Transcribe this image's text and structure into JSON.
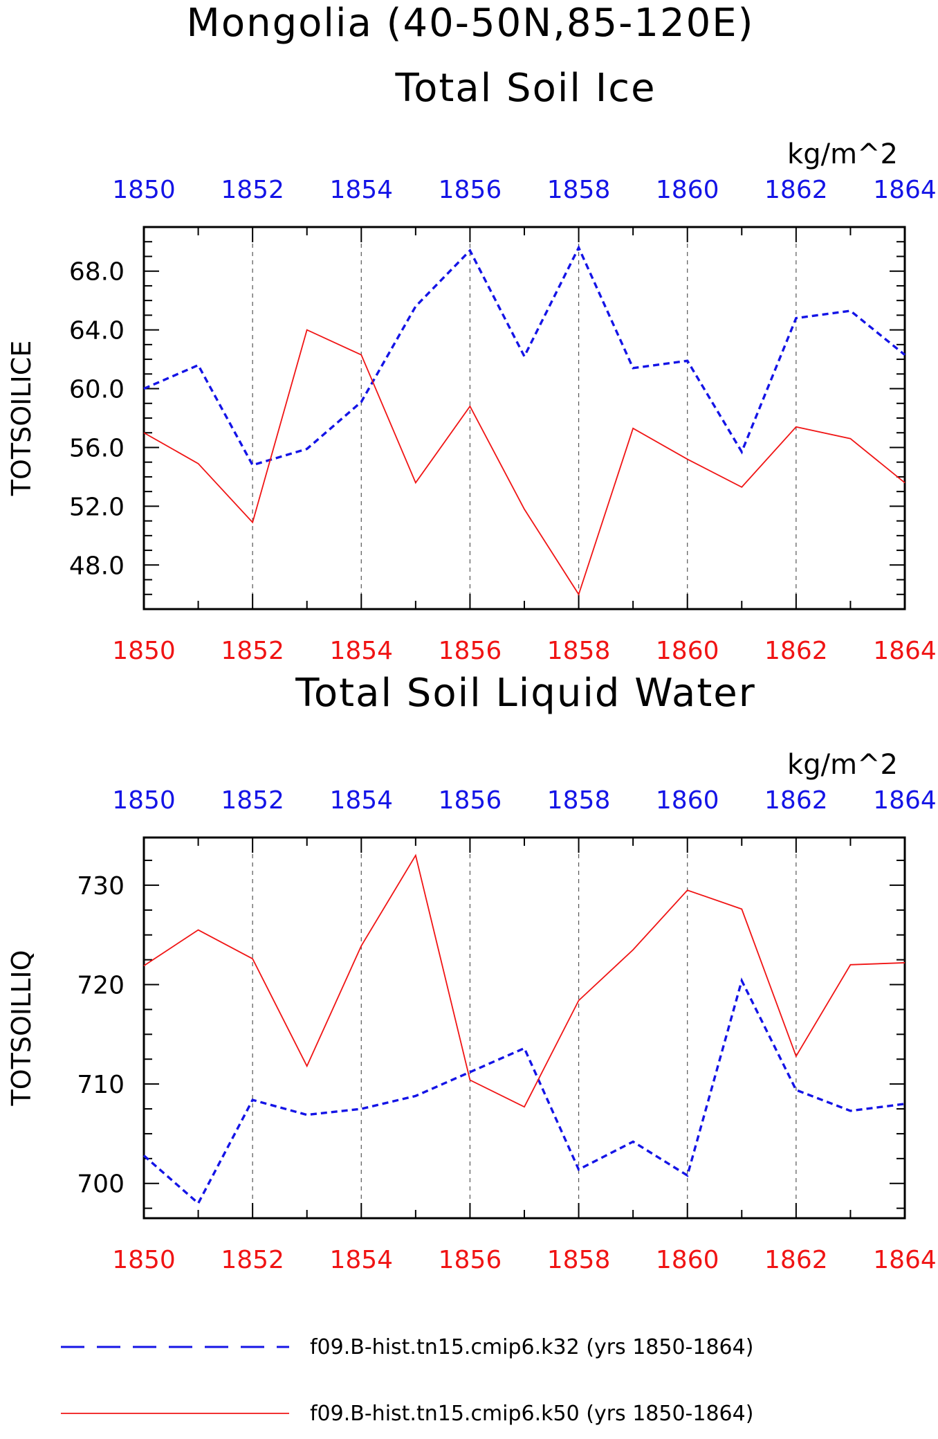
{
  "figure": {
    "main_title": "Mongolia (40-50N,85-120E)",
    "colors": {
      "k32": "#1414e6",
      "k50": "#f01414",
      "axis": "#000000",
      "grid": "#555555"
    },
    "legend": [
      {
        "label": "f09.B-hist.tn15.cmip6.k32 (yrs 1850-1864)",
        "style": "dashed",
        "color": "#1414e6"
      },
      {
        "label": "f09.B-hist.tn15.cmip6.k50 (yrs 1850-1864)",
        "style": "solid",
        "color": "#f01414"
      }
    ]
  },
  "chart_data": [
    {
      "type": "line",
      "title": "Total Soil Ice",
      "units": "kg/m^2",
      "ylabel": "TOTSOILICE",
      "xlim": [
        1850,
        1864
      ],
      "ylim": [
        45.0,
        71.0
      ],
      "yticks": [
        48.0,
        52.0,
        56.0,
        60.0,
        64.0,
        68.0
      ],
      "ytick_labels": [
        "48.0",
        "52.0",
        "56.0",
        "60.0",
        "64.0",
        "68.0"
      ],
      "xticks": [
        1850,
        1852,
        1854,
        1856,
        1858,
        1860,
        1862,
        1864
      ],
      "xtick_labels": [
        "1850",
        "1852",
        "1854",
        "1856",
        "1858",
        "1860",
        "1862",
        "1864"
      ],
      "grid": "vertical dashed at labeled x ticks",
      "x": [
        1850,
        1851,
        1852,
        1853,
        1854,
        1855,
        1856,
        1857,
        1858,
        1859,
        1860,
        1861,
        1862,
        1863,
        1864
      ],
      "series": [
        {
          "name": "f09.B-hist.tn15.cmip6.k32 (yrs 1850-1864)",
          "style": "dashed",
          "color": "#1414e6",
          "values": [
            60.0,
            61.6,
            54.8,
            55.9,
            59.1,
            65.6,
            69.4,
            62.2,
            69.6,
            61.4,
            61.9,
            55.7,
            64.8,
            65.3,
            62.3
          ]
        },
        {
          "name": "f09.B-hist.tn15.cmip6.k50 (yrs 1850-1864)",
          "style": "solid",
          "color": "#f01414",
          "values": [
            57.0,
            54.9,
            50.9,
            64.0,
            62.3,
            53.6,
            58.8,
            51.8,
            46.0,
            57.3,
            55.2,
            53.3,
            57.4,
            56.6,
            53.6
          ]
        }
      ]
    },
    {
      "type": "line",
      "title": "Total Soil Liquid Water",
      "units": "kg/m^2",
      "ylabel": "TOTSOILLIQ",
      "xlim": [
        1850,
        1864
      ],
      "ylim": [
        696.5,
        734.8
      ],
      "yticks": [
        700,
        710,
        720,
        730
      ],
      "ytick_labels": [
        "700",
        "710",
        "720",
        "730"
      ],
      "xticks": [
        1850,
        1852,
        1854,
        1856,
        1858,
        1860,
        1862,
        1864
      ],
      "xtick_labels": [
        "1850",
        "1852",
        "1854",
        "1856",
        "1858",
        "1860",
        "1862",
        "1864"
      ],
      "grid": "vertical dashed at labeled x ticks",
      "x": [
        1850,
        1851,
        1852,
        1853,
        1854,
        1855,
        1856,
        1857,
        1858,
        1859,
        1860,
        1861,
        1862,
        1863,
        1864
      ],
      "series": [
        {
          "name": "f09.B-hist.tn15.cmip6.k32 (yrs 1850-1864)",
          "style": "dashed",
          "color": "#1414e6",
          "values": [
            702.8,
            698.0,
            708.4,
            706.9,
            707.5,
            708.8,
            711.2,
            713.6,
            701.4,
            704.2,
            700.8,
            720.4,
            709.4,
            707.3,
            708.0
          ]
        },
        {
          "name": "f09.B-hist.tn15.cmip6.k50 (yrs 1850-1864)",
          "style": "solid",
          "color": "#f01414",
          "values": [
            721.9,
            725.5,
            722.6,
            711.8,
            723.9,
            733.0,
            710.4,
            707.7,
            718.4,
            723.5,
            729.5,
            727.6,
            712.8,
            722.0,
            722.2
          ]
        }
      ]
    }
  ]
}
